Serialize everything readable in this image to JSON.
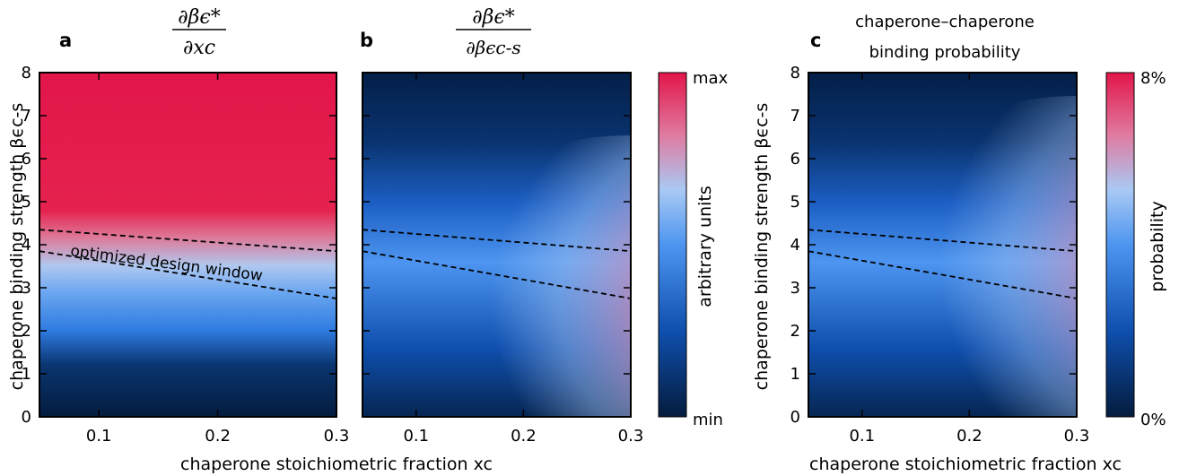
{
  "panel_a": {
    "letter": "a",
    "title_numerator": "∂βϵ*",
    "title_denominator": "∂xc",
    "annotation": "optimized design window"
  },
  "panel_b": {
    "letter": "b",
    "title_numerator": "∂βϵ*",
    "title_denominator": "∂βϵc-s",
    "colorbar_label": "arbitrary units",
    "colorbar_top": "max",
    "colorbar_bottom": "min"
  },
  "panel_c": {
    "letter": "c",
    "title_line1": "chaperone–chaperone",
    "title_line2": "binding probability",
    "colorbar_label": "probability",
    "colorbar_top": "8%",
    "colorbar_bottom": "0%"
  },
  "axes": {
    "ylabel": "chaperone binding strength βϵc-s",
    "xlabel": "chaperone stoichiometric fraction xc",
    "x_ticks": [
      "0.1",
      "0.2",
      "0.3"
    ],
    "y_ticks": [
      "0",
      "1",
      "2",
      "3",
      "4",
      "5",
      "6",
      "7",
      "8"
    ]
  },
  "colors": {
    "low": "#04214a",
    "mid": "#3c8df0",
    "light": "#a9c9f4",
    "high": "#e2154a"
  },
  "chart_data": [
    {
      "type": "heatmap",
      "panel": "a",
      "xlim": [
        0.05,
        0.3
      ],
      "ylim": [
        0,
        8
      ],
      "x_ticks": [
        0.1,
        0.2,
        0.3
      ],
      "y_ticks": [
        0,
        1,
        2,
        3,
        4,
        5,
        6,
        7,
        8
      ],
      "color_scale": "dark blue (min) → blue → light → red (max)",
      "description_of_field": "value increases with y; red above ~4.5, light band ~3–4, dark below ~1.5; boundary tilts slightly downward with x",
      "dashed_lines": [
        {
          "x": [
            0.05,
            0.3
          ],
          "y": [
            4.35,
            3.85
          ]
        },
        {
          "x": [
            0.05,
            0.3
          ],
          "y": [
            3.85,
            2.75
          ]
        }
      ]
    },
    {
      "type": "heatmap",
      "panel": "b",
      "xlim": [
        0.05,
        0.3
      ],
      "ylim": [
        0,
        8
      ],
      "x_ticks": [
        0.1,
        0.2,
        0.3
      ],
      "color_range": [
        "min",
        "max"
      ],
      "peak": {
        "x": 0.3,
        "y": 2.7
      },
      "dashed_lines": [
        {
          "x": [
            0.05,
            0.3
          ],
          "y": [
            4.35,
            3.85
          ]
        },
        {
          "x": [
            0.05,
            0.3
          ],
          "y": [
            3.85,
            2.75
          ]
        }
      ]
    },
    {
      "type": "heatmap",
      "panel": "c",
      "xlim": [
        0.05,
        0.3
      ],
      "ylim": [
        0,
        8
      ],
      "x_ticks": [
        0.1,
        0.2,
        0.3
      ],
      "y_ticks": [
        0,
        1,
        2,
        3,
        4,
        5,
        6,
        7,
        8
      ],
      "color_range_percent": [
        0,
        8
      ],
      "peak": {
        "x": 0.3,
        "y": 3.5
      },
      "dashed_lines": [
        {
          "x": [
            0.05,
            0.3
          ],
          "y": [
            4.35,
            3.85
          ]
        },
        {
          "x": [
            0.05,
            0.3
          ],
          "y": [
            3.85,
            2.75
          ]
        }
      ]
    }
  ]
}
